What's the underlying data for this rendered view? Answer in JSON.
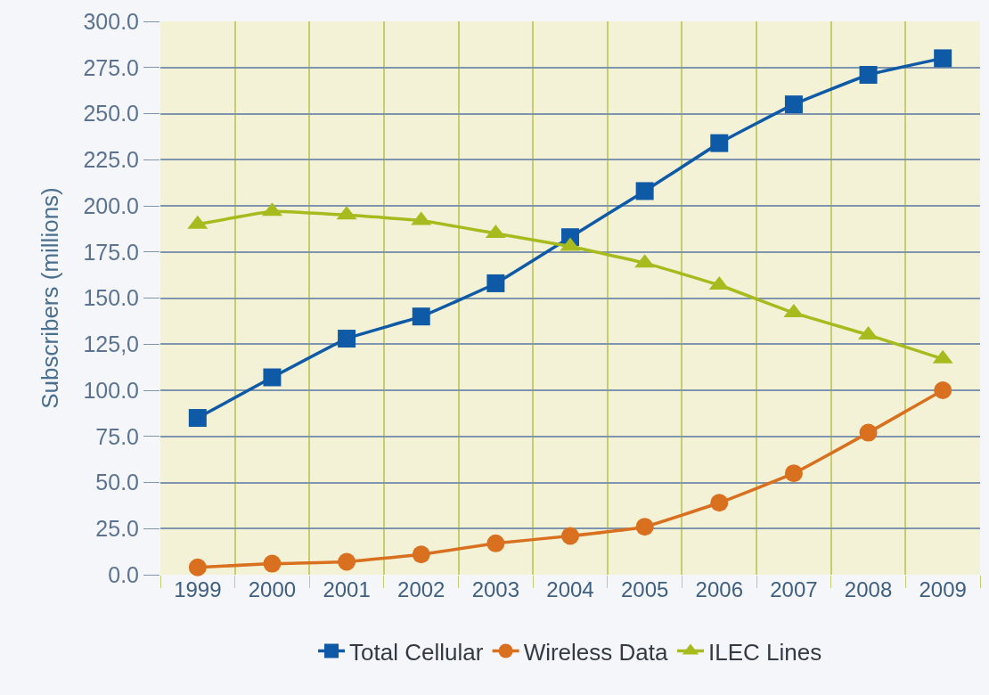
{
  "chart_data": {
    "type": "line",
    "ylabel": "Subscribers (millions)",
    "categories": [
      "1999",
      "2000",
      "2001",
      "2002",
      "2003",
      "2004",
      "2005",
      "2006",
      "2007",
      "2008",
      "2009"
    ],
    "series": [
      {
        "name": "Total Cellular",
        "color": "#0f5aa6",
        "marker": "square",
        "values": [
          85,
          107,
          128,
          140,
          158,
          183,
          208,
          234,
          255,
          271,
          280
        ]
      },
      {
        "name": "Wireless Data",
        "color": "#d9701f",
        "marker": "circle",
        "values": [
          4,
          6,
          7,
          11,
          17,
          21,
          26,
          39,
          55,
          77,
          100
        ]
      },
      {
        "name": "ILEC Lines",
        "color": "#a8bb1e",
        "marker": "triangle",
        "values": [
          190,
          197,
          195,
          192,
          185,
          178,
          169,
          157,
          142,
          130,
          117
        ]
      }
    ],
    "ylim": [
      0,
      300
    ],
    "yticks": [
      {
        "value": 0,
        "label": "0.0"
      },
      {
        "value": 25,
        "label": "25.0"
      },
      {
        "value": 50,
        "label": "50.0"
      },
      {
        "value": 75,
        "label": "75.0"
      },
      {
        "value": 100,
        "label": "100.0"
      },
      {
        "value": 125,
        "label": "125,0"
      },
      {
        "value": 150,
        "label": "150.0"
      },
      {
        "value": 175,
        "label": "175.0"
      },
      {
        "value": 200,
        "label": "200.0"
      },
      {
        "value": 225,
        "label": "225.0"
      },
      {
        "value": 250,
        "label": "250.0"
      },
      {
        "value": 275,
        "label": "275.0"
      },
      {
        "value": 300,
        "label": "300.0"
      }
    ],
    "grid": true,
    "legend": "bottom",
    "line_style": "solid"
  }
}
